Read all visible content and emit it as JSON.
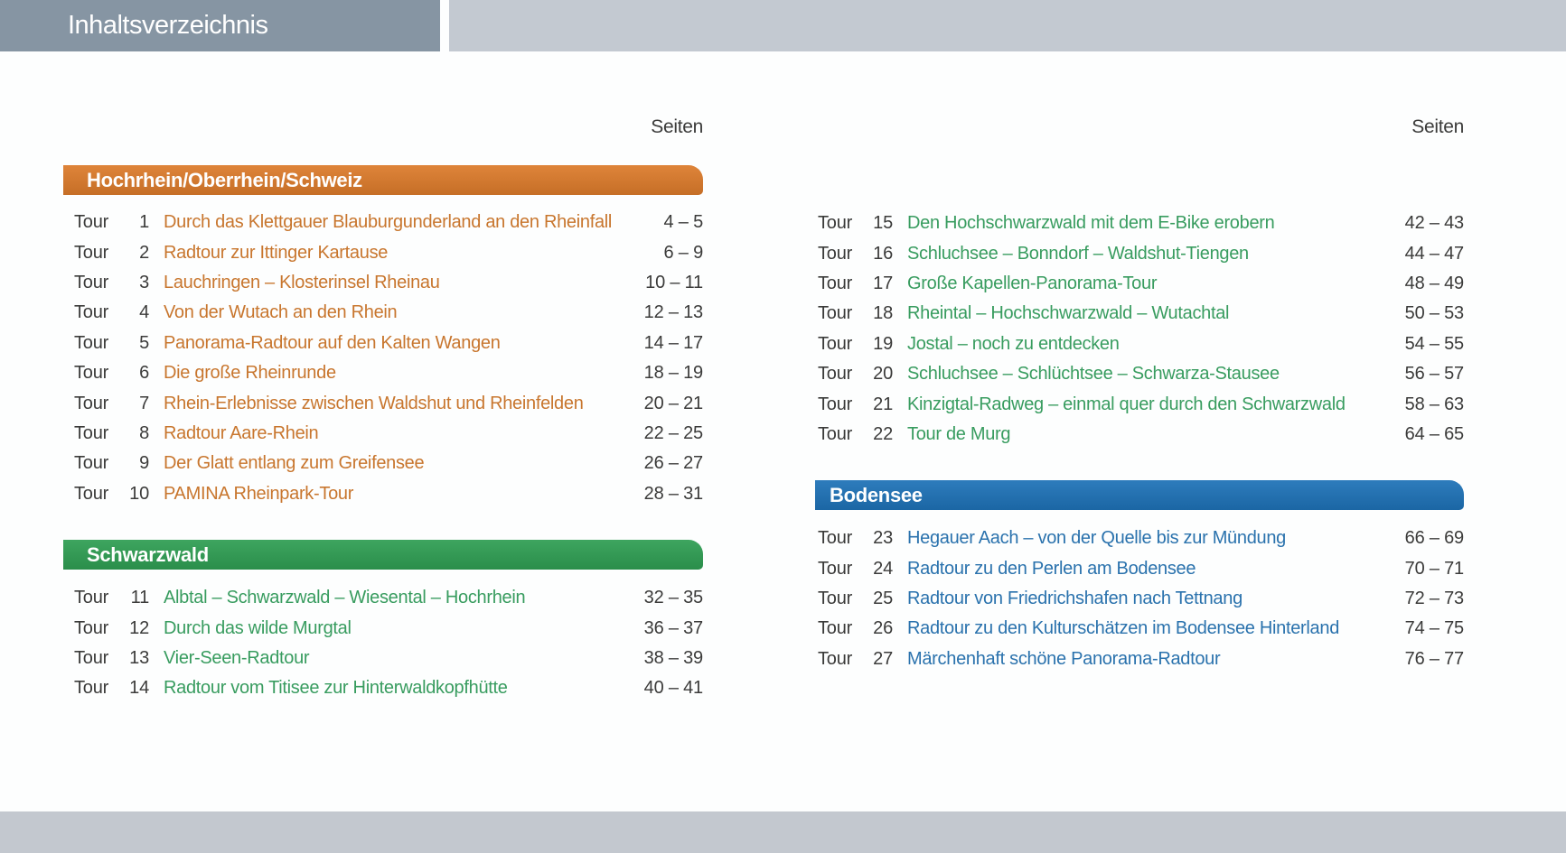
{
  "header": {
    "title": "Inhaltsverzeichnis"
  },
  "tour_label": "Tour",
  "columns": {
    "left": {
      "seiten_label": "Seiten",
      "sections": [
        {
          "title": "Hochrhein/Oberrhein/Schweiz",
          "bar_color": "#dc7b2b",
          "text_color": "#c8762e",
          "tours": [
            {
              "num": "1",
              "title": "Durch das Klettgauer Blauburgunderland an den Rheinfall",
              "pages": "4 – 5"
            },
            {
              "num": "2",
              "title": "Radtour zur Ittinger Kartause",
              "pages": "6 – 9"
            },
            {
              "num": "3",
              "title": "Lauchringen – Klosterinsel Rheinau",
              "pages": "10 – 11"
            },
            {
              "num": "4",
              "title": "Von der Wutach an den Rhein",
              "pages": "12 – 13"
            },
            {
              "num": "5",
              "title": "Panorama-Radtour auf den Kalten Wangen",
              "pages": "14 – 17"
            },
            {
              "num": "6",
              "title": "Die große Rheinrunde",
              "pages": "18 – 19"
            },
            {
              "num": "7",
              "title": "Rhein-Erlebnisse zwischen Waldshut und Rheinfelden",
              "pages": "20 – 21"
            },
            {
              "num": "8",
              "title": "Radtour Aare-Rhein",
              "pages": "22 – 25"
            },
            {
              "num": "9",
              "title": "Der Glatt entlang zum Greifensee",
              "pages": "26 – 27"
            },
            {
              "num": "10",
              "title": "PAMINA Rheinpark-Tour",
              "pages": "28 – 31"
            }
          ]
        },
        {
          "title": "Schwarzwald",
          "bar_color": "#2f9e53",
          "text_color": "#389c5f",
          "tours": [
            {
              "num": "11",
              "title": "Albtal – Schwarzwald – Wiesental – Hochrhein",
              "pages": "32 – 35"
            },
            {
              "num": "12",
              "title": "Durch das wilde Murgtal",
              "pages": "36 – 37"
            },
            {
              "num": "13",
              "title": "Vier-Seen-Radtour",
              "pages": "38 – 39"
            },
            {
              "num": "14",
              "title": "Radtour vom Titisee zur Hinterwaldkopfhütte",
              "pages": "40 – 41"
            }
          ]
        }
      ]
    },
    "right": {
      "seiten_label": "Seiten",
      "sections": [
        {
          "title": "",
          "bar_color": "",
          "text_color": "#389c5f",
          "tours": [
            {
              "num": "15",
              "title": "Den Hochschwarzwald mit dem E-Bike erobern",
              "pages": "42 – 43"
            },
            {
              "num": "16",
              "title": "Schluchsee – Bonndorf – Waldshut-Tiengen",
              "pages": "44 – 47"
            },
            {
              "num": "17",
              "title": "Große Kapellen-Panorama-Tour",
              "pages": "48 – 49"
            },
            {
              "num": "18",
              "title": "Rheintal – Hochschwarzwald – Wutachtal",
              "pages": "50 – 53"
            },
            {
              "num": "19",
              "title": "Jostal – noch zu entdecken",
              "pages": "54 – 55"
            },
            {
              "num": "20",
              "title": "Schluchsee – Schlüchtsee – Schwarza-Stausee",
              "pages": "56 – 57"
            },
            {
              "num": "21",
              "title": "Kinzigtal-Radweg – einmal quer durch den Schwarzwald",
              "pages": "58 – 63"
            },
            {
              "num": "22",
              "title": "Tour de Murg",
              "pages": "64 – 65"
            }
          ]
        },
        {
          "title": "Bodensee",
          "bar_color": "#1e72b7",
          "text_color": "#2a72ad",
          "tours": [
            {
              "num": "23",
              "title": "Hegauer Aach – von der Quelle bis zur Mündung",
              "pages": "66 – 69"
            },
            {
              "num": "24",
              "title": "Radtour zu den Perlen am Bodensee",
              "pages": "70 – 71"
            },
            {
              "num": "25",
              "title": "Radtour von Friedrichshafen nach Tettnang",
              "pages": "72 – 73"
            },
            {
              "num": "26",
              "title": "Radtour zu den Kulturschätzen im Bodensee Hinterland",
              "pages": "74 – 75"
            },
            {
              "num": "27",
              "title": "Märchenhaft schöne Panorama-Radtour",
              "pages": "76 – 77"
            }
          ]
        }
      ]
    }
  }
}
